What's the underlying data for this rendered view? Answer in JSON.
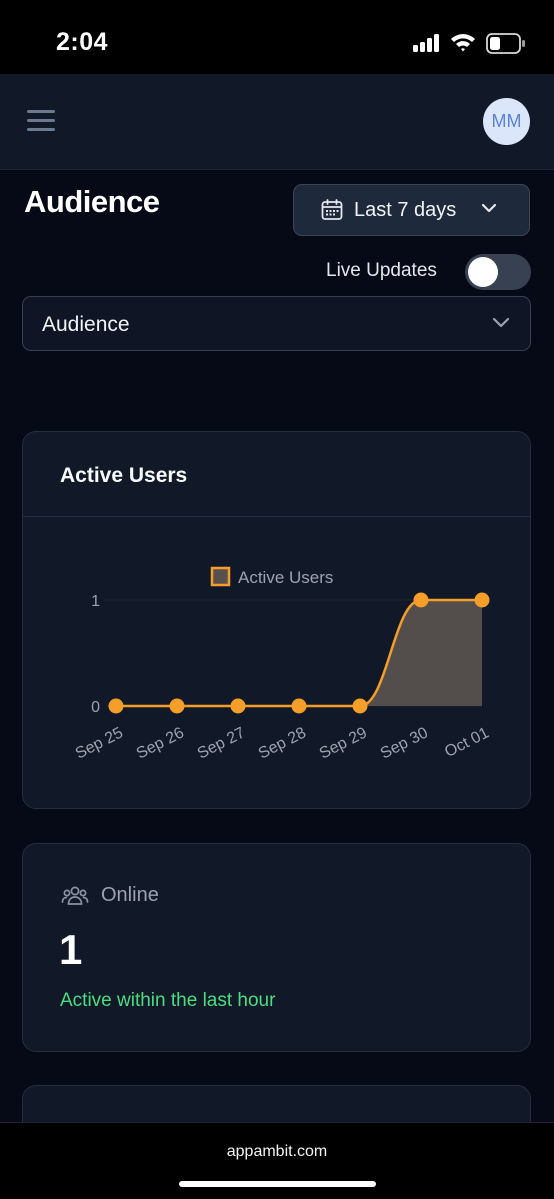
{
  "status_bar": {
    "time": "2:04"
  },
  "nav": {
    "avatar_initials": "MM"
  },
  "header": {
    "title": "Audience",
    "date_range": "Last 7 days",
    "live_updates_label": "Live Updates",
    "live_updates_on": false
  },
  "selector": {
    "value": "Audience"
  },
  "active_users_card": {
    "title": "Active Users"
  },
  "online_card": {
    "label": "Online",
    "value": "1",
    "note": "Active within the last hour"
  },
  "browser": {
    "url": "appambit.com"
  },
  "colors": {
    "accent_orange": "#f59e2a",
    "area_fill": "#57504d",
    "positive_green": "#4ade80"
  },
  "chart_data": {
    "type": "area",
    "title": "",
    "xlabel": "",
    "ylabel": "",
    "legend_position": "top",
    "categories": [
      "Sep 25",
      "Sep 26",
      "Sep 27",
      "Sep 28",
      "Sep 29",
      "Sep 30",
      "Oct 01"
    ],
    "series": [
      {
        "name": "Active Users",
        "values": [
          0,
          0,
          0,
          0,
          0,
          1,
          1
        ]
      }
    ],
    "y_ticks": [
      0,
      1
    ],
    "ylim": [
      0,
      1
    ],
    "grid": true
  }
}
